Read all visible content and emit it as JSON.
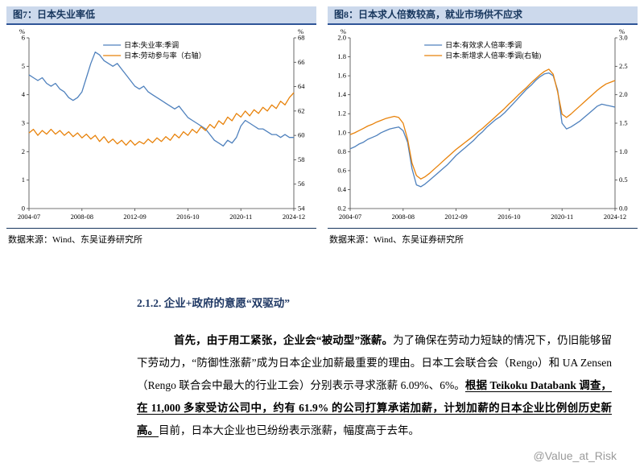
{
  "theme": {
    "header_bg": "#ccd9ec",
    "header_text": "#17365d",
    "header_rule": "#2f5597",
    "line_blue": "#4f81bd",
    "line_orange": "#e8820a",
    "watermark_gray": "#9a9a9a"
  },
  "watermark": "@Value_at_Risk",
  "section": {
    "heading": "2.1.2. 企业+政府的意愿“双驱动”",
    "paragraph": [
      {
        "text": "首先，由于用工紧张，企业会“被动型”涨薪。",
        "bold": true,
        "underline": false
      },
      {
        "text": "为了确保在劳动力短缺的情况下，仍旧能够留下劳动力，“防御性涨薪”成为日本企业加薪最重要的理由。日本工会联合会（Rengo）和 UA Zensen（Rengo 联合会中最大的行业工会）分别表示寻求涨薪 6.09%、6%。",
        "bold": false,
        "underline": false
      },
      {
        "text": "根据 Teikoku Databank 调查，在 11,000 多家受访公司中，约有 61.9% 的公司打算承诺加薪，计划加薪的日本企业比例创历史新高。",
        "bold": true,
        "underline": true
      },
      {
        "text": "目前，日本大企业也已纷纷表示涨薪，幅度高于去年。",
        "bold": false,
        "underline": false
      }
    ]
  },
  "chart_data": [
    {
      "type": "line",
      "title": "图7：日本失业率低",
      "source": "数据来源：Wind、东吴证券研究所",
      "grid": false,
      "legend_position": "top",
      "x_ticks": [
        "2004-07",
        "2008-08",
        "2012-09",
        "2016-10",
        "2020-11",
        "2024-12"
      ],
      "left_axis": {
        "unit": "%",
        "min": 0,
        "max": 6,
        "tick_values": [
          0,
          1,
          2,
          3,
          4,
          5,
          6
        ],
        "tick_labels": [
          "0",
          "1",
          "2",
          "3",
          "4",
          "5",
          "6"
        ]
      },
      "right_axis": {
        "unit": "%",
        "min": 54,
        "max": 68,
        "tick_values": [
          54,
          56,
          58,
          60,
          62,
          64,
          66,
          68
        ],
        "tick_labels": [
          "54",
          "56",
          "58",
          "60",
          "62",
          "64",
          "66",
          "68"
        ]
      },
      "series": [
        {
          "name": "日本:失业率:季调",
          "axis": "left",
          "color": "#4f81bd",
          "values": [
            4.7,
            4.6,
            4.5,
            4.6,
            4.4,
            4.3,
            4.4,
            4.2,
            4.1,
            3.9,
            3.8,
            3.9,
            4.1,
            4.6,
            5.1,
            5.5,
            5.4,
            5.2,
            5.1,
            5.0,
            5.1,
            4.9,
            4.7,
            4.5,
            4.3,
            4.2,
            4.3,
            4.1,
            4.0,
            3.9,
            3.8,
            3.7,
            3.6,
            3.5,
            3.6,
            3.4,
            3.2,
            3.1,
            3.0,
            2.9,
            2.8,
            2.6,
            2.4,
            2.3,
            2.2,
            2.4,
            2.3,
            2.5,
            2.9,
            3.1,
            3.0,
            2.9,
            2.8,
            2.8,
            2.7,
            2.6,
            2.6,
            2.5,
            2.6,
            2.5,
            2.5
          ]
        },
        {
          "name": "日本:劳动参与率（右轴）",
          "axis": "right",
          "color": "#e8820a",
          "values": [
            60.2,
            60.5,
            60.0,
            60.4,
            60.1,
            60.5,
            60.1,
            60.4,
            60.0,
            60.3,
            59.9,
            60.2,
            59.8,
            60.1,
            59.7,
            60.0,
            59.5,
            59.9,
            59.4,
            59.7,
            59.3,
            59.6,
            59.2,
            59.6,
            59.2,
            59.5,
            59.3,
            59.7,
            59.4,
            59.8,
            59.5,
            59.9,
            59.6,
            60.1,
            59.8,
            60.3,
            60.0,
            60.5,
            60.2,
            60.7,
            60.4,
            60.9,
            60.6,
            61.2,
            60.9,
            61.5,
            61.2,
            61.8,
            61.5,
            62.0,
            61.6,
            62.1,
            61.8,
            62.3,
            62.0,
            62.5,
            62.2,
            62.8,
            62.5,
            63.1,
            63.5
          ]
        }
      ]
    },
    {
      "type": "line",
      "title": "图8：日本求人倍数较高，就业市场供不应求",
      "source": "数据来源：Wind、东吴证券研究所",
      "grid": false,
      "legend_position": "top",
      "x_ticks": [
        "2004-07",
        "2008-08",
        "2012-09",
        "2016-10",
        "2020-11",
        "2024-12"
      ],
      "left_axis": {
        "unit": "%",
        "min": 0.2,
        "max": 2.0,
        "tick_values": [
          0.2,
          0.4,
          0.6,
          0.8,
          1.0,
          1.2,
          1.4,
          1.6,
          1.8,
          2.0
        ],
        "tick_labels": [
          "0.2",
          "0.4",
          "0.6",
          "0.8",
          "1.0",
          "1.2",
          "1.4",
          "1.6",
          "1.8",
          "2.0"
        ]
      },
      "right_axis": {
        "unit": "%",
        "min": 0.0,
        "max": 3.0,
        "tick_values": [
          0,
          0.5,
          1,
          1.5,
          2,
          2.5,
          3
        ],
        "tick_labels": [
          "0.0",
          "0.5",
          "1.0",
          "1.5",
          "2.0",
          "2.5",
          "3.0"
        ]
      },
      "series": [
        {
          "name": "日本:有效求人倍率:季调",
          "axis": "left",
          "color": "#4f81bd",
          "values": [
            0.83,
            0.85,
            0.88,
            0.9,
            0.93,
            0.95,
            0.97,
            1.0,
            1.02,
            1.04,
            1.05,
            1.06,
            1.02,
            0.9,
            0.62,
            0.45,
            0.43,
            0.46,
            0.5,
            0.54,
            0.58,
            0.62,
            0.66,
            0.71,
            0.76,
            0.8,
            0.84,
            0.88,
            0.92,
            0.97,
            1.01,
            1.06,
            1.1,
            1.14,
            1.17,
            1.21,
            1.26,
            1.31,
            1.36,
            1.41,
            1.46,
            1.5,
            1.55,
            1.59,
            1.62,
            1.63,
            1.6,
            1.45,
            1.1,
            1.04,
            1.06,
            1.09,
            1.12,
            1.16,
            1.2,
            1.24,
            1.28,
            1.3,
            1.29,
            1.28,
            1.27
          ]
        },
        {
          "name": "日本:新增求人倍率:季调(右轴)",
          "axis": "right",
          "color": "#e8820a",
          "values": [
            1.3,
            1.33,
            1.37,
            1.41,
            1.45,
            1.48,
            1.52,
            1.55,
            1.58,
            1.6,
            1.62,
            1.6,
            1.5,
            1.22,
            0.8,
            0.58,
            0.52,
            0.56,
            0.62,
            0.69,
            0.76,
            0.83,
            0.9,
            0.97,
            1.04,
            1.1,
            1.16,
            1.22,
            1.28,
            1.35,
            1.41,
            1.48,
            1.55,
            1.62,
            1.69,
            1.76,
            1.84,
            1.91,
            1.99,
            2.06,
            2.13,
            2.21,
            2.28,
            2.35,
            2.41,
            2.45,
            2.36,
            2.05,
            1.66,
            1.6,
            1.66,
            1.73,
            1.8,
            1.87,
            1.94,
            2.01,
            2.08,
            2.14,
            2.19,
            2.22,
            2.25
          ]
        }
      ]
    }
  ]
}
